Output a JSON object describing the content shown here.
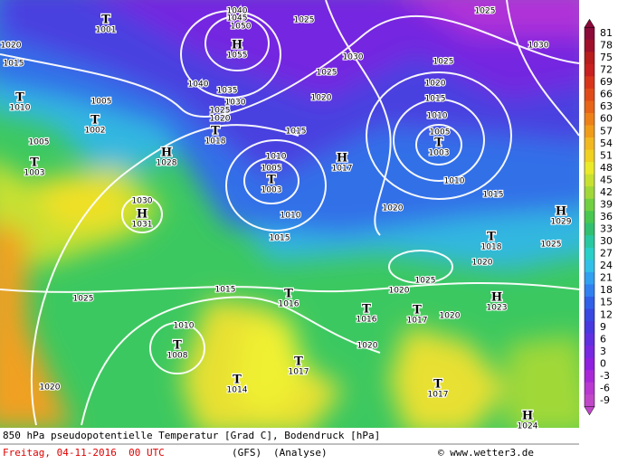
{
  "legend": {
    "labels": [
      81,
      78,
      75,
      72,
      69,
      66,
      63,
      60,
      57,
      54,
      51,
      48,
      45,
      42,
      39,
      36,
      33,
      30,
      27,
      24,
      21,
      18,
      15,
      12,
      9,
      6,
      3,
      0,
      -3,
      -6,
      -9
    ],
    "colors": [
      "#8b0a3a",
      "#a0102a",
      "#b81c1c",
      "#c82020",
      "#d8341c",
      "#e04a18",
      "#e86418",
      "#ee8018",
      "#f09c18",
      "#f2b820",
      "#f0d020",
      "#eaea28",
      "#c8e030",
      "#a0d838",
      "#70d040",
      "#48c850",
      "#30c070",
      "#28c8a0",
      "#28d0c8",
      "#30c0e8",
      "#30a0f0",
      "#3080f0",
      "#3060e8",
      "#3848e0",
      "#4838e0",
      "#6030e0",
      "#7828e0",
      "#9020e0",
      "#a828d8",
      "#b838d0",
      "#c048c8"
    ]
  },
  "pressure_centers": [
    {
      "symbol": "T",
      "value": 1001
    },
    {
      "symbol": "H",
      "value": 1055
    },
    {
      "symbol": "T",
      "value": 1010
    },
    {
      "symbol": "T",
      "value": 1002
    },
    {
      "symbol": "T",
      "value": 1003
    },
    {
      "symbol": "H",
      "value": 1028
    },
    {
      "symbol": "H",
      "value": 1031
    },
    {
      "symbol": "T",
      "value": 1018
    },
    {
      "symbol": "T",
      "value": 1003
    },
    {
      "symbol": "H",
      "value": 1017
    },
    {
      "symbol": "T",
      "value": 1003
    },
    {
      "symbol": "H",
      "value": 1029
    },
    {
      "symbol": "T",
      "value": 1018
    },
    {
      "symbol": "T",
      "value": 1016
    },
    {
      "symbol": "T",
      "value": 1016
    },
    {
      "symbol": "T",
      "value": 1017
    },
    {
      "symbol": "H",
      "value": 1023
    },
    {
      "symbol": "T",
      "value": 1008
    },
    {
      "symbol": "T",
      "value": 1017
    },
    {
      "symbol": "T",
      "value": 1014
    },
    {
      "symbol": "T",
      "value": 1017
    },
    {
      "symbol": "H",
      "value": 1024
    }
  ],
  "isobar_labels": [
    1020,
    1015,
    1005,
    1005,
    1030,
    1025,
    1015,
    1010,
    1020,
    1040,
    1035,
    1030,
    1025,
    1020,
    1025,
    1030,
    1025,
    1020,
    1015,
    1010,
    1005,
    1010,
    1015,
    1025,
    1030,
    1025,
    1020,
    1015,
    1010,
    1005,
    1010,
    1015,
    1020,
    1025,
    1020,
    1025,
    1020,
    1020,
    1020,
    1040,
    1045,
    1050
  ],
  "caption": {
    "title": "850 hPa pseudopotentielle Temperatur [Grad C], Bodendruck [hPa]",
    "date": "Freitag, 04-11-2016  00 UTC",
    "model": "(GFS)",
    "run": "(Analyse)",
    "credit": "© www.wetter3.de"
  }
}
